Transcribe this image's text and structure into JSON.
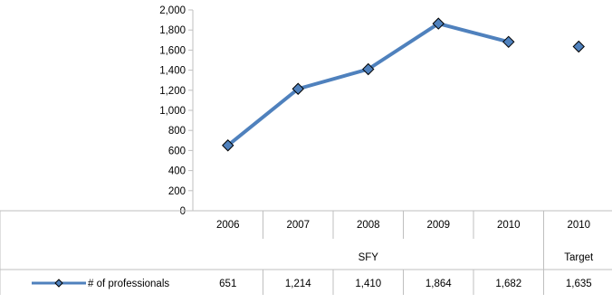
{
  "colors": {
    "series_line": "#4F81BD",
    "marker_fill": "#4F81BD",
    "marker_stroke": "#000000",
    "grid_border": "#BFBFBF"
  },
  "chart_data": {
    "type": "line",
    "title": "",
    "xlabel": "",
    "ylabel": "",
    "ylim": [
      0,
      2000
    ],
    "ytick_step": 200,
    "y_tick_labels": [
      "0",
      "200",
      "400",
      "600",
      "800",
      "1,000",
      "1,200",
      "1,400",
      "1,600",
      "1,800",
      "2,000"
    ],
    "grid": false,
    "categories": [
      "2006",
      "2007",
      "2008",
      "2009",
      "2010",
      "2010"
    ],
    "category_groups": [
      {
        "label": "SFY",
        "span": 5
      },
      {
        "label": "Target",
        "span": 1
      }
    ],
    "series": [
      {
        "name": "# of professionals",
        "marker": "diamond",
        "values": [
          651,
          1214,
          1410,
          1864,
          1682,
          1635
        ],
        "value_labels": [
          "651",
          "1,214",
          "1,410",
          "1,864",
          "1,682",
          "1,635"
        ],
        "connected": [
          true,
          true,
          true,
          true,
          true,
          false
        ]
      }
    ],
    "legend": "data-table"
  }
}
